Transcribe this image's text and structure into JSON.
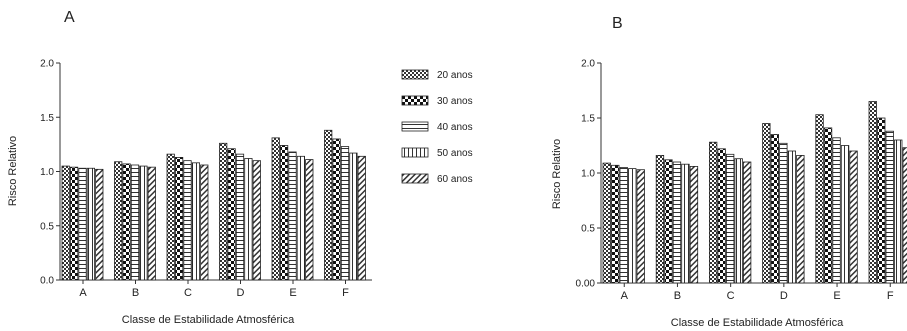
{
  "chart_data": [
    {
      "panel": "A",
      "type": "bar",
      "ylabel": "Risco Relativo",
      "xlabel": "Classe de Estabilidade Atmosférica",
      "ylim": [
        0.0,
        2.0
      ],
      "yticks": [
        "0.0",
        "0.5",
        "1.0",
        "1.5",
        "2.0"
      ],
      "categories": [
        "A",
        "B",
        "C",
        "D",
        "E",
        "F"
      ],
      "series": [
        {
          "name": "20 anos",
          "values": [
            1.05,
            1.09,
            1.16,
            1.26,
            1.31,
            1.38
          ]
        },
        {
          "name": "30 anos",
          "values": [
            1.04,
            1.07,
            1.13,
            1.21,
            1.24,
            1.3
          ]
        },
        {
          "name": "40 anos",
          "values": [
            1.03,
            1.06,
            1.1,
            1.16,
            1.18,
            1.23
          ]
        },
        {
          "name": "50 anos",
          "values": [
            1.03,
            1.05,
            1.08,
            1.12,
            1.14,
            1.17
          ]
        },
        {
          "name": "60 anos",
          "values": [
            1.02,
            1.04,
            1.06,
            1.1,
            1.11,
            1.14
          ]
        }
      ],
      "legend_position": "right"
    },
    {
      "panel": "B",
      "type": "bar",
      "ylabel": "Risco Relativo",
      "xlabel": "Classe de Estabilidade Atmosférica",
      "ylim": [
        0.0,
        2.0
      ],
      "yticks": [
        "0.00",
        "0.5",
        "1.0",
        "1.5",
        "2.0"
      ],
      "categories": [
        "A",
        "B",
        "C",
        "D",
        "E",
        "F"
      ],
      "series": [
        {
          "name": "20 anos",
          "values": [
            1.09,
            1.16,
            1.28,
            1.45,
            1.53,
            1.65
          ]
        },
        {
          "name": "30 anos",
          "values": [
            1.07,
            1.12,
            1.22,
            1.35,
            1.41,
            1.5
          ]
        },
        {
          "name": "40 anos",
          "values": [
            1.05,
            1.1,
            1.17,
            1.27,
            1.32,
            1.38
          ]
        },
        {
          "name": "50 anos",
          "values": [
            1.04,
            1.08,
            1.13,
            1.2,
            1.25,
            1.3
          ]
        },
        {
          "name": "60 anos",
          "values": [
            1.03,
            1.06,
            1.1,
            1.16,
            1.2,
            1.23
          ]
        }
      ]
    }
  ]
}
